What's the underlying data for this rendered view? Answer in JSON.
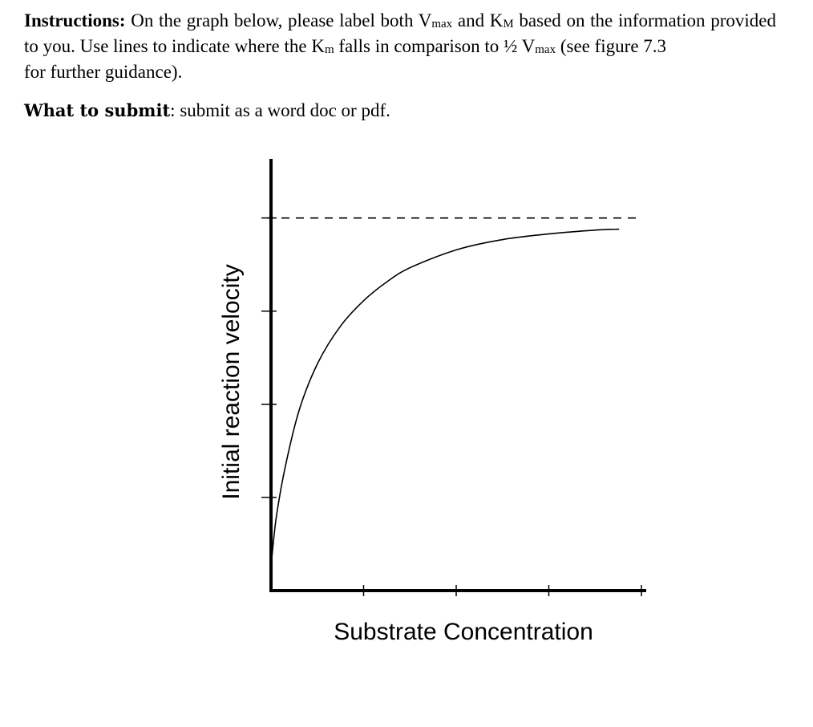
{
  "instructions": {
    "label": "Instructions:",
    "text_1": " On the graph below, please label both V",
    "vmax_sub_1": "max",
    "text_2": " and K",
    "km_sub_1": "M",
    "text_3": " based on the information provided to you. Use lines to indicate where the K",
    "km_sub_2": "m",
    "text_4": " falls in comparison to ½ V",
    "vmax_sub_2": "max",
    "text_5": " (see figure 7.3",
    "text_6": "for further guidance)."
  },
  "submit": {
    "label": "What to submit",
    "colon": ":",
    "text": " submit as a word doc or pdf."
  },
  "chart_data": {
    "type": "line",
    "title": "",
    "xlabel": "Substrate Concentration",
    "ylabel": "Initial reaction velocity",
    "x_tick_labels": [],
    "y_tick_labels": [],
    "x_ticks": [
      1,
      2,
      3,
      4
    ],
    "y_ticks": [
      1,
      2,
      3,
      4
    ],
    "xlim": [
      0,
      4
    ],
    "ylim": [
      0,
      4.6
    ],
    "vmax": 4,
    "vmax_line": "dashed",
    "grid": false,
    "series": [
      {
        "curve": "Michaelis-Menten (hyperbolic saturation)",
        "x": [
          0,
          0.05,
          0.15,
          0.3,
          0.5,
          0.75,
          1.0,
          1.25,
          1.5,
          2.0,
          2.5,
          3.0,
          3.5,
          3.75
        ],
        "y": [
          0.35,
          0.8,
          1.35,
          1.95,
          2.45,
          2.85,
          3.12,
          3.32,
          3.47,
          3.66,
          3.77,
          3.83,
          3.87,
          3.88
        ]
      }
    ]
  }
}
